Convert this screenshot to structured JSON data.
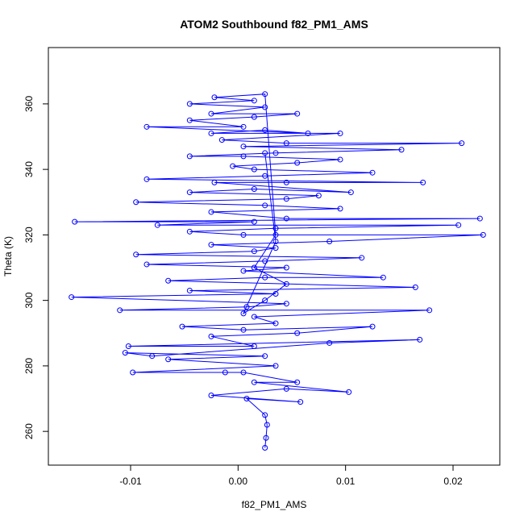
{
  "chart_data": {
    "type": "line",
    "markers": "open-circle",
    "title": "ATOM2 Southbound f82_PM1_AMS",
    "x_label": "f82_PM1_AMS",
    "y_label": "Theta (K)",
    "color": "#0000ff",
    "x": [
      0.0025,
      0.0026,
      0.0027,
      0.0025,
      0.0008,
      0.0058,
      -0.0025,
      0.0045,
      0.0103,
      0.0015,
      0.0055,
      0.0005,
      -0.0012,
      -0.0098,
      0.0035,
      -0.0065,
      0.0025,
      -0.0105,
      -0.008,
      0.0085,
      0.0169,
      -0.0102,
      0.0015,
      -0.0025,
      0.0055,
      0.0125,
      0.0005,
      -0.0052,
      0.0035,
      0.0015,
      0.0178,
      -0.011,
      0.0008,
      0.0045,
      -0.0155,
      0.0035,
      -0.0045,
      0.0165,
      -0.0065,
      0.0025,
      0.0135,
      0.0005,
      0.0045,
      -0.0085,
      0.0025,
      0.0115,
      -0.0095,
      0.0015,
      0.0035,
      -0.0025,
      0.0085,
      0.0228,
      0.0005,
      -0.0045,
      0.0035,
      0.0205,
      -0.0075,
      0.0015,
      -0.0152,
      0.0225,
      0.0045,
      -0.0025,
      0.0095,
      0.0025,
      -0.0095,
      0.0045,
      0.0075,
      -0.0045,
      0.0015,
      0.0105,
      -0.0022,
      0.0045,
      0.0172,
      -0.0085,
      0.0025,
      0.0125,
      0.0015,
      -0.0005,
      0.0055,
      0.0095,
      0.0005,
      -0.0045,
      0.0035,
      0.0152,
      0.0005,
      0.0208,
      0.0045,
      -0.0015,
      0.0095,
      -0.0025,
      0.0025,
      0.0065,
      -0.0085,
      0.0005,
      -0.0045,
      0.0015,
      0.0055,
      -0.0025,
      0.0025,
      -0.0045,
      0.0015,
      -0.0022,
      0.0025,
      0.0035,
      0.0015,
      0.0045,
      0.0025,
      0.0005,
      0.0035,
      0.0025
    ],
    "values": [
      255,
      258,
      262,
      265,
      270,
      269,
      271,
      273,
      272,
      275,
      275,
      278,
      278,
      278,
      280,
      282,
      283,
      284,
      283,
      287,
      288,
      286,
      286,
      289,
      290,
      292,
      291,
      292,
      293,
      295,
      297,
      297,
      298,
      299,
      301,
      302,
      303,
      304,
      306,
      307,
      307,
      309,
      310,
      311,
      312,
      313,
      314,
      315,
      316,
      317,
      318,
      320,
      320,
      321,
      322,
      323,
      323,
      324,
      324,
      325,
      325,
      327,
      328,
      329,
      330,
      331,
      332,
      333,
      334,
      333,
      336,
      336,
      336,
      337,
      338,
      339,
      340,
      341,
      342,
      343,
      344,
      344,
      345,
      346,
      347,
      348,
      348,
      349,
      351,
      351,
      352,
      351,
      353,
      353,
      355,
      356,
      357,
      357,
      359,
      360,
      361,
      362,
      363,
      320,
      310,
      305,
      300,
      296,
      318,
      345
    ],
    "xlim": [
      -0.01765,
      0.02435
    ],
    "ylim": [
      249.7,
      377.2
    ],
    "xticks": [
      -0.01,
      {
        "value": 0,
        "label": "0.00"
      },
      0.01,
      0.02
    ],
    "yticks": [
      260,
      280,
      300,
      320,
      340,
      360
    ]
  }
}
